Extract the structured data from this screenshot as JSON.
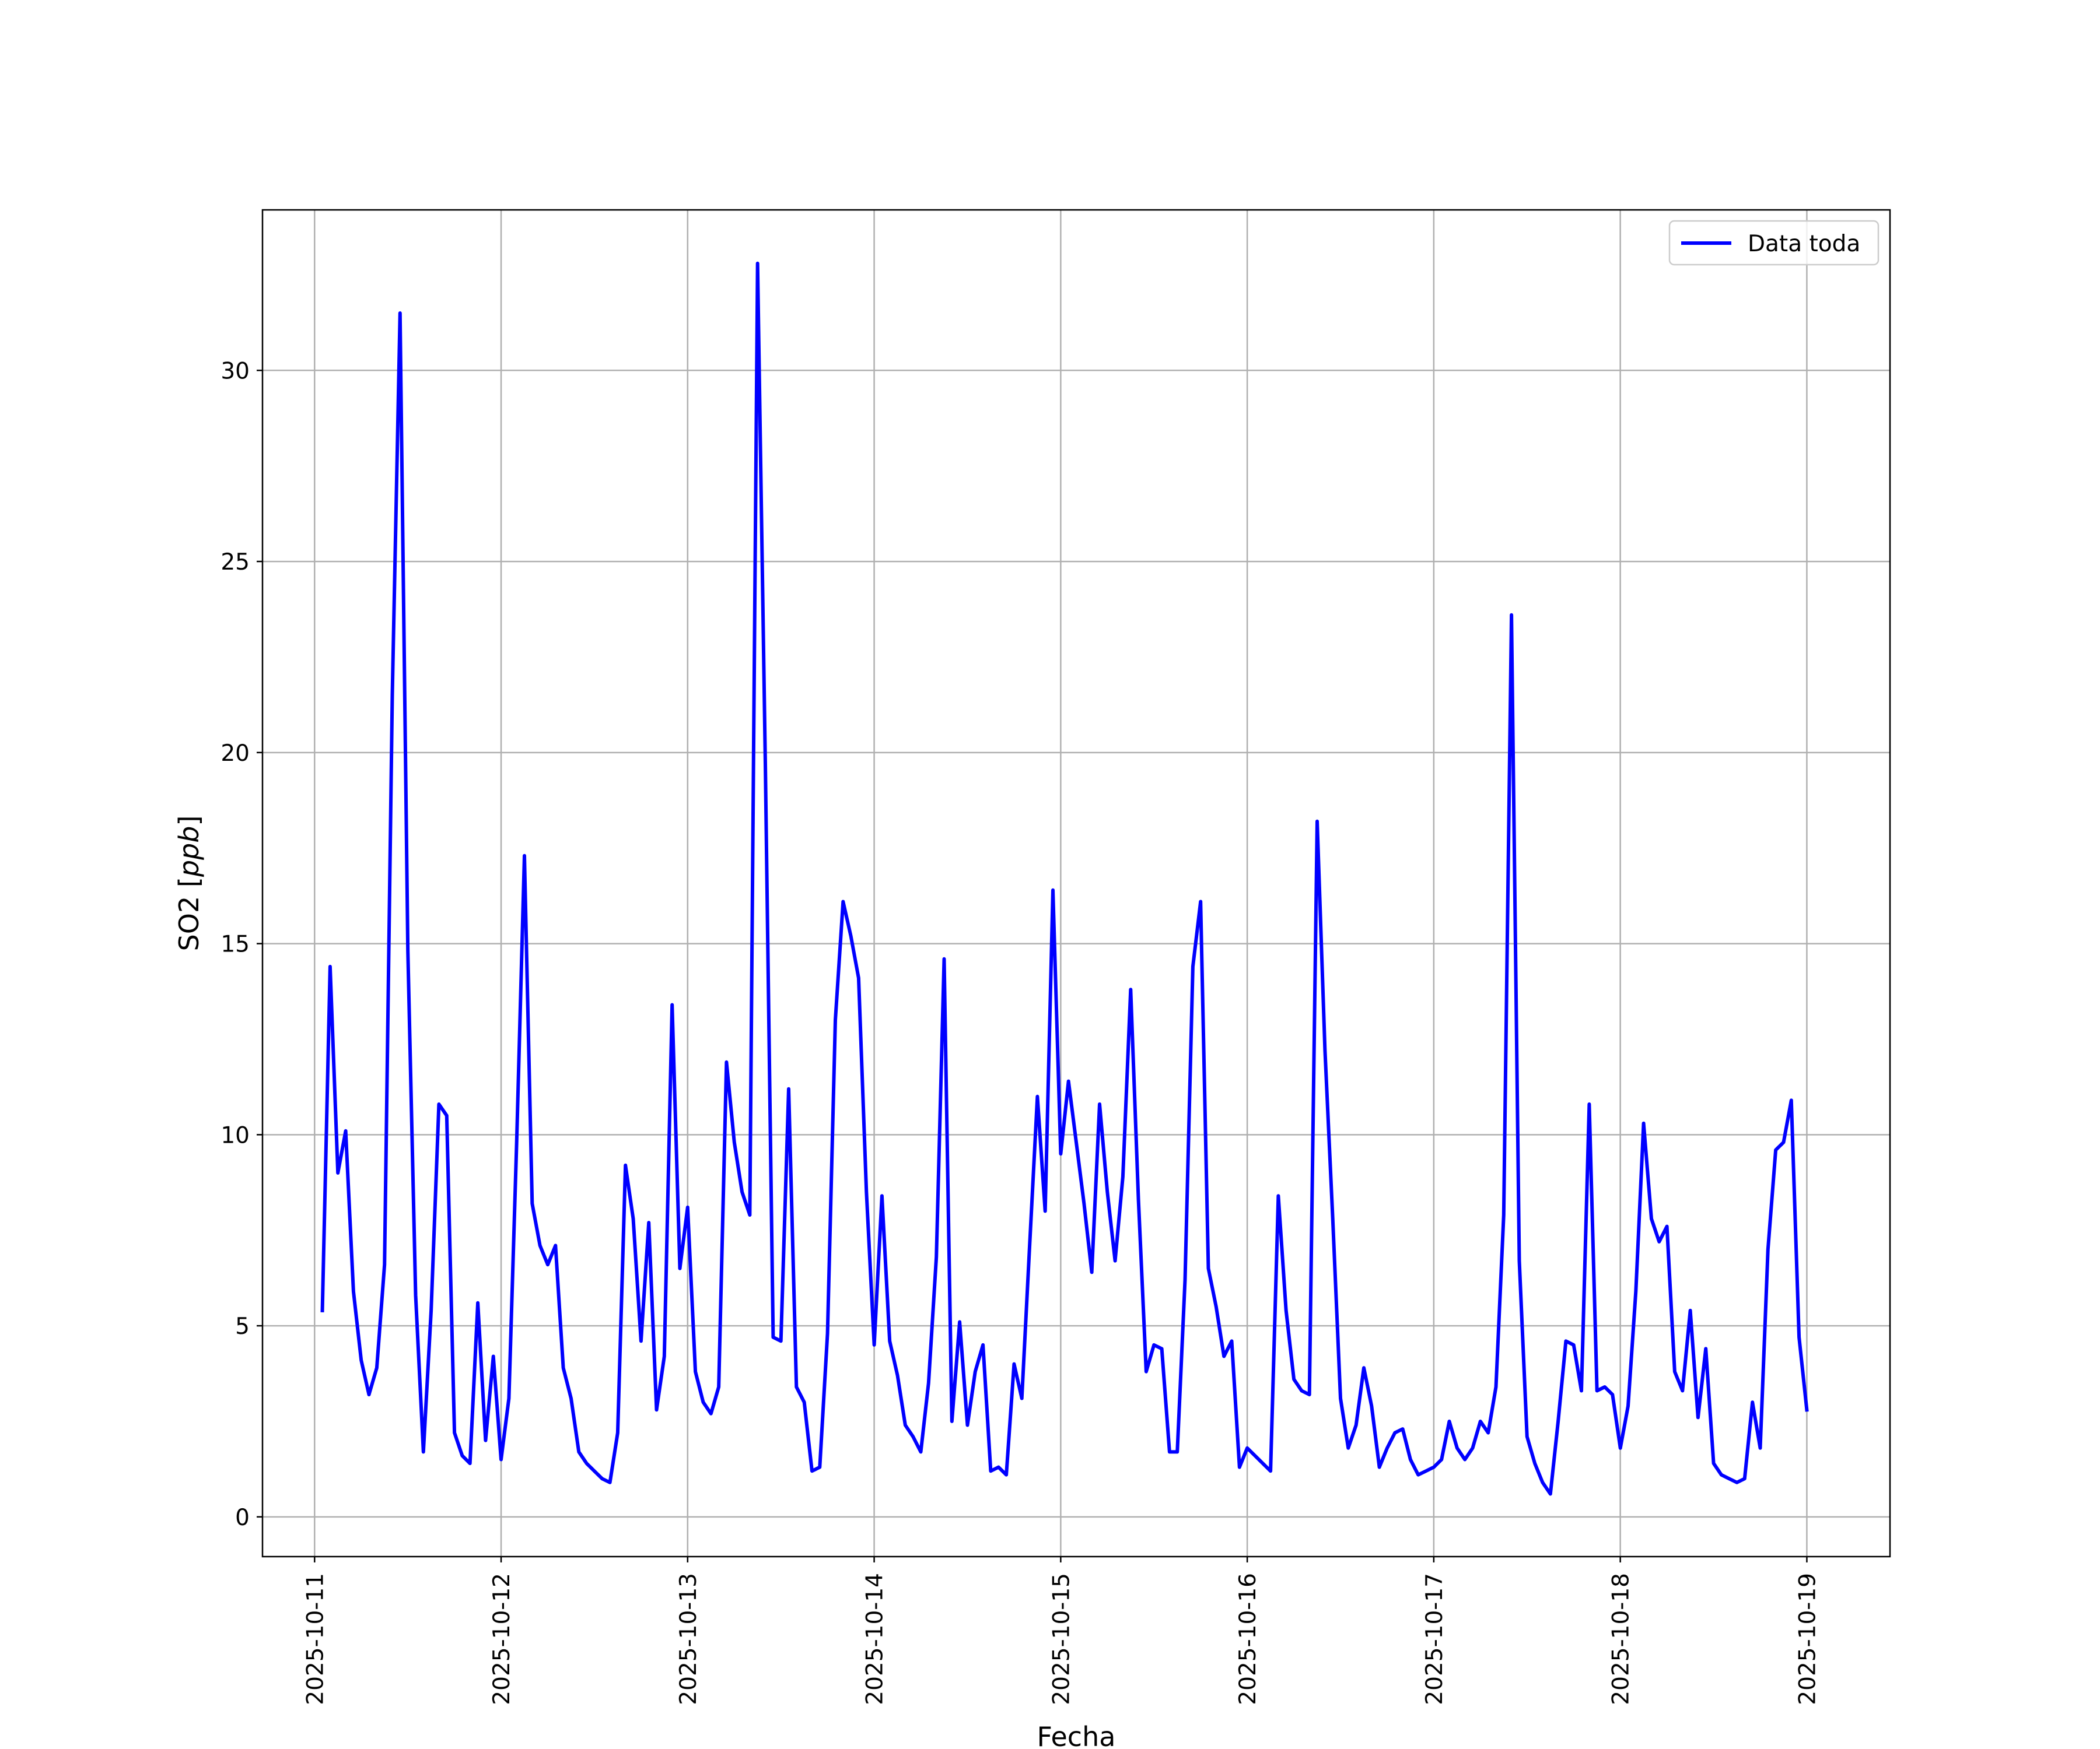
{
  "chart_data": {
    "type": "line",
    "xlabel": "Fecha",
    "ylabel_prefix": "SO2 [",
    "ylabel_unit": "ppb",
    "ylabel_suffix": "]",
    "x_tick_labels": [
      "2025-10-11",
      "2025-10-12",
      "2025-10-13",
      "2025-10-14",
      "2025-10-15",
      "2025-10-16",
      "2025-10-17",
      "2025-10-18",
      "2025-10-19"
    ],
    "y_ticks": [
      0,
      5,
      10,
      15,
      20,
      25,
      30
    ],
    "xlim": [
      "2025-10-10 17:18",
      "2025-10-19 10:42"
    ],
    "ylim": [
      -1.04,
      34.2
    ],
    "grid": true,
    "legend_placement": "top-right",
    "colors": {
      "series": "#0000ff",
      "grid": "#b0b0b0",
      "axes": "#000000"
    },
    "series": [
      {
        "name": "Data toda",
        "x": [
          "2025-10-11 01:00",
          "2025-10-11 02:00",
          "2025-10-11 03:00",
          "2025-10-11 04:00",
          "2025-10-11 05:00",
          "2025-10-11 06:00",
          "2025-10-11 07:00",
          "2025-10-11 08:00",
          "2025-10-11 09:00",
          "2025-10-11 10:00",
          "2025-10-11 11:00",
          "2025-10-11 12:00",
          "2025-10-11 13:00",
          "2025-10-11 14:00",
          "2025-10-11 15:00",
          "2025-10-11 16:00",
          "2025-10-11 17:00",
          "2025-10-11 18:00",
          "2025-10-11 19:00",
          "2025-10-11 20:00",
          "2025-10-11 21:00",
          "2025-10-11 22:00",
          "2025-10-11 23:00",
          "2025-10-12 00:00",
          "2025-10-12 01:00",
          "2025-10-12 02:00",
          "2025-10-12 03:00",
          "2025-10-12 04:00",
          "2025-10-12 05:00",
          "2025-10-12 06:00",
          "2025-10-12 07:00",
          "2025-10-12 08:00",
          "2025-10-12 09:00",
          "2025-10-12 10:00",
          "2025-10-12 11:00",
          "2025-10-12 12:00",
          "2025-10-12 13:00",
          "2025-10-12 14:00",
          "2025-10-12 15:00",
          "2025-10-12 16:00",
          "2025-10-12 17:00",
          "2025-10-12 18:00",
          "2025-10-12 19:00",
          "2025-10-12 20:00",
          "2025-10-12 21:00",
          "2025-10-12 22:00",
          "2025-10-12 23:00",
          "2025-10-13 00:00",
          "2025-10-13 01:00",
          "2025-10-13 02:00",
          "2025-10-13 03:00",
          "2025-10-13 04:00",
          "2025-10-13 05:00",
          "2025-10-13 06:00",
          "2025-10-13 07:00",
          "2025-10-13 08:00",
          "2025-10-13 09:00",
          "2025-10-13 10:00",
          "2025-10-13 11:00",
          "2025-10-13 12:00",
          "2025-10-13 13:00",
          "2025-10-13 14:00",
          "2025-10-13 15:00",
          "2025-10-13 16:00",
          "2025-10-13 17:00",
          "2025-10-13 18:00",
          "2025-10-13 19:00",
          "2025-10-13 20:00",
          "2025-10-13 21:00",
          "2025-10-13 22:00",
          "2025-10-13 23:00",
          "2025-10-14 00:00",
          "2025-10-14 01:00",
          "2025-10-14 02:00",
          "2025-10-14 03:00",
          "2025-10-14 04:00",
          "2025-10-14 05:00",
          "2025-10-14 06:00",
          "2025-10-14 07:00",
          "2025-10-14 08:00",
          "2025-10-14 09:00",
          "2025-10-14 10:00",
          "2025-10-14 11:00",
          "2025-10-14 12:00",
          "2025-10-14 13:00",
          "2025-10-14 14:00",
          "2025-10-14 15:00",
          "2025-10-14 16:00",
          "2025-10-14 17:00",
          "2025-10-14 18:00",
          "2025-10-14 19:00",
          "2025-10-14 20:00",
          "2025-10-14 21:00",
          "2025-10-14 22:00",
          "2025-10-14 23:00",
          "2025-10-15 00:00",
          "2025-10-15 01:00",
          "2025-10-15 02:00",
          "2025-10-15 03:00",
          "2025-10-15 04:00",
          "2025-10-15 05:00",
          "2025-10-15 06:00",
          "2025-10-15 07:00",
          "2025-10-15 08:00",
          "2025-10-15 09:00",
          "2025-10-15 10:00",
          "2025-10-15 11:00",
          "2025-10-15 12:00",
          "2025-10-15 13:00",
          "2025-10-15 14:00",
          "2025-10-15 15:00",
          "2025-10-15 16:00",
          "2025-10-15 17:00",
          "2025-10-15 18:00",
          "2025-10-15 19:00",
          "2025-10-15 20:00",
          "2025-10-15 21:00",
          "2025-10-15 22:00",
          "2025-10-15 23:00",
          "2025-10-16 00:00",
          "2025-10-16 01:00",
          "2025-10-16 02:00",
          "2025-10-16 03:00",
          "2025-10-16 04:00",
          "2025-10-16 05:00",
          "2025-10-16 06:00",
          "2025-10-16 07:00",
          "2025-10-16 08:00",
          "2025-10-16 09:00",
          "2025-10-16 10:00",
          "2025-10-16 11:00",
          "2025-10-16 12:00",
          "2025-10-16 13:00",
          "2025-10-16 14:00",
          "2025-10-16 15:00",
          "2025-10-16 16:00",
          "2025-10-16 17:00",
          "2025-10-16 18:00",
          "2025-10-16 19:00",
          "2025-10-16 20:00",
          "2025-10-16 21:00",
          "2025-10-16 22:00",
          "2025-10-16 23:00",
          "2025-10-17 00:00",
          "2025-10-17 01:00",
          "2025-10-17 02:00",
          "2025-10-17 03:00",
          "2025-10-17 04:00",
          "2025-10-17 05:00",
          "2025-10-17 06:00",
          "2025-10-17 07:00",
          "2025-10-17 08:00",
          "2025-10-17 09:00",
          "2025-10-17 10:00",
          "2025-10-17 11:00",
          "2025-10-17 12:00",
          "2025-10-17 13:00",
          "2025-10-17 14:00",
          "2025-10-17 15:00",
          "2025-10-17 16:00",
          "2025-10-17 17:00",
          "2025-10-17 18:00",
          "2025-10-17 19:00",
          "2025-10-17 20:00",
          "2025-10-17 21:00",
          "2025-10-17 22:00",
          "2025-10-17 23:00",
          "2025-10-18 00:00",
          "2025-10-18 01:00",
          "2025-10-18 02:00",
          "2025-10-18 03:00",
          "2025-10-18 04:00",
          "2025-10-18 05:00",
          "2025-10-18 06:00",
          "2025-10-18 07:00",
          "2025-10-18 08:00",
          "2025-10-18 09:00",
          "2025-10-18 10:00",
          "2025-10-18 11:00",
          "2025-10-18 12:00",
          "2025-10-18 13:00",
          "2025-10-18 14:00",
          "2025-10-18 15:00",
          "2025-10-18 16:00",
          "2025-10-18 17:00",
          "2025-10-18 18:00",
          "2025-10-18 19:00",
          "2025-10-18 20:00",
          "2025-10-18 21:00",
          "2025-10-18 22:00",
          "2025-10-18 23:00",
          "2025-10-19 00:00"
        ],
        "y": [
          5.4,
          14.4,
          9.0,
          10.1,
          5.9,
          4.1,
          3.2,
          3.9,
          6.6,
          21.5,
          31.5,
          14.8,
          5.8,
          1.7,
          5.4,
          10.8,
          10.5,
          2.2,
          1.6,
          1.4,
          5.6,
          2.0,
          4.2,
          1.5,
          3.1,
          9.8,
          17.3,
          8.2,
          7.1,
          6.6,
          7.1,
          3.9,
          3.1,
          1.7,
          1.4,
          1.2,
          1.0,
          0.9,
          2.2,
          9.2,
          7.8,
          4.6,
          7.7,
          2.8,
          4.2,
          13.4,
          6.5,
          8.1,
          3.8,
          3.0,
          2.7,
          3.4,
          11.9,
          9.8,
          8.5,
          7.9,
          32.8,
          19.7,
          4.7,
          4.6,
          11.2,
          3.4,
          3.0,
          1.2,
          1.3,
          4.8,
          13.0,
          16.1,
          15.2,
          14.1,
          8.5,
          4.5,
          8.4,
          4.6,
          3.7,
          2.4,
          2.1,
          1.7,
          3.5,
          6.8,
          14.6,
          2.5,
          5.1,
          2.4,
          3.8,
          4.5,
          1.2,
          1.3,
          1.1,
          4.0,
          3.1,
          7.1,
          11.0,
          8.0,
          16.4,
          9.5,
          11.4,
          9.8,
          8.2,
          6.4,
          10.8,
          8.5,
          6.7,
          8.9,
          13.8,
          8.3,
          3.8,
          4.5,
          4.4,
          1.7,
          1.7,
          6.2,
          14.4,
          16.1,
          6.5,
          5.5,
          4.2,
          4.6,
          1.3,
          1.8,
          1.6,
          1.4,
          1.2,
          8.4,
          5.4,
          3.6,
          3.3,
          3.2,
          18.2,
          12.2,
          7.8,
          3.1,
          1.8,
          2.4,
          3.9,
          2.9,
          1.3,
          1.8,
          2.2,
          2.3,
          1.5,
          1.1,
          1.2,
          1.3,
          1.5,
          2.5,
          1.8,
          1.5,
          1.8,
          2.5,
          2.2,
          3.4,
          7.9,
          23.6,
          6.7,
          2.1,
          1.4,
          0.9,
          0.6,
          2.5,
          4.6,
          4.5,
          3.3,
          10.8,
          3.3,
          3.4,
          3.2,
          1.8,
          2.9,
          5.9,
          10.3,
          7.8,
          7.2,
          7.6,
          3.8,
          3.3,
          5.4,
          2.6,
          4.4,
          1.4,
          1.1,
          1.0,
          0.9,
          1.0,
          3.0,
          1.8,
          7.0,
          9.6,
          9.8,
          10.9,
          4.7,
          2.8
        ]
      }
    ]
  }
}
